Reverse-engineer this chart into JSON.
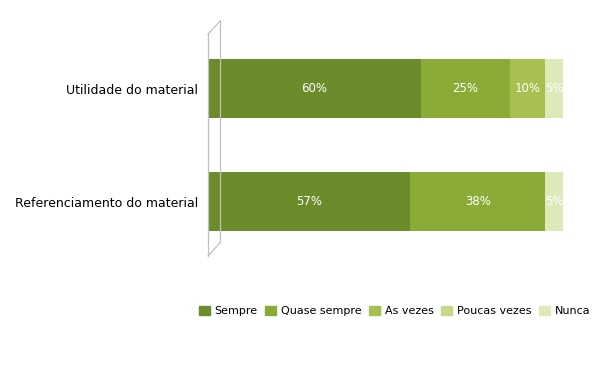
{
  "categories": [
    "Referenciamento do material",
    "Utilidade do material"
  ],
  "series": {
    "Sempre": [
      57,
      60
    ],
    "Quase sempre": [
      38,
      25
    ],
    "As vezes": [
      0,
      10
    ],
    "Poucas vezes": [
      0,
      0
    ],
    "Nunca": [
      5,
      5
    ]
  },
  "colors": {
    "Sempre": "#6b8c2a",
    "Quase sempre": "#8aab35",
    "As vezes": "#a8c050",
    "Poucas vezes": "#c5d88a",
    "Nunca": "#dce9b8"
  },
  "labels": {
    "Sempre": [
      "57%",
      "60%"
    ],
    "Quase sempre": [
      "38%",
      "25%"
    ],
    "As vezes": [
      "",
      "10%"
    ],
    "Poucas vezes": [
      "",
      ""
    ],
    "Nunca": [
      "5%",
      "5%"
    ]
  },
  "legend_order": [
    "Sempre",
    "Quase sempre",
    "As vezes",
    "Poucas vezes",
    "Nunca"
  ],
  "background_color": "#ffffff",
  "bar_height": 0.52,
  "xlim": [
    0,
    105
  ],
  "label_fontsize": 8.5,
  "legend_fontsize": 8,
  "ytick_fontsize": 9
}
